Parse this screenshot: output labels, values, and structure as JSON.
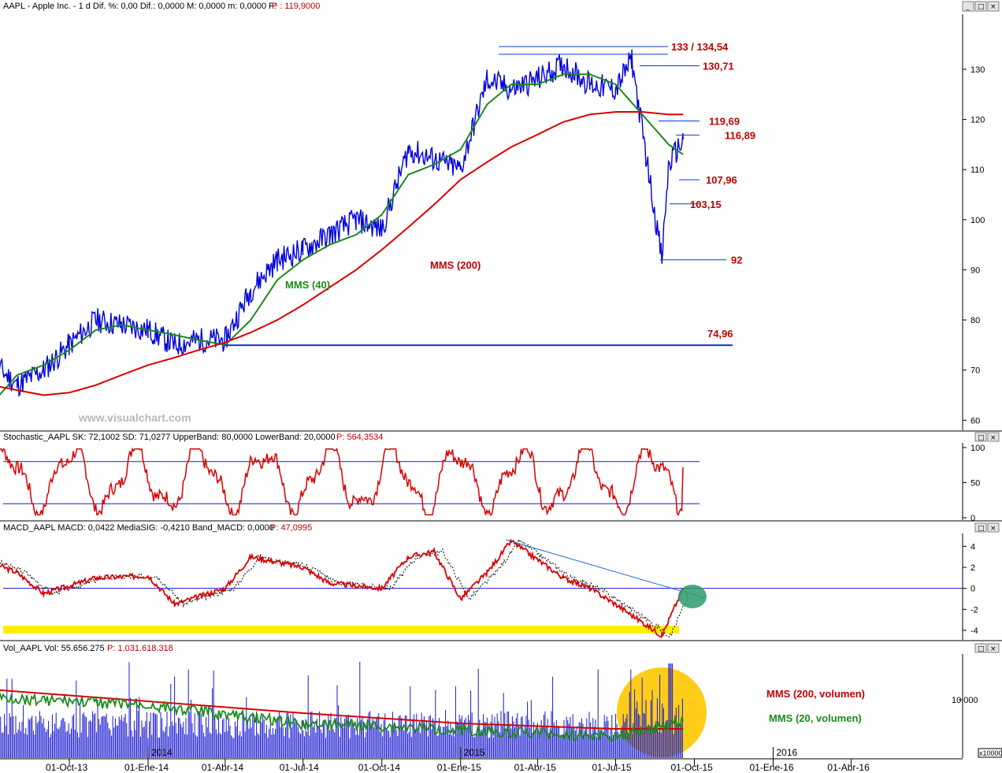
{
  "panels": {
    "price_header": "AAPL - Apple Inc. - 1 d Dif. %: 0,00 Dif.: 0,0000 M: 0,0000 m: 0,0000 F:",
    "price_header_last": "P : 119,9000",
    "stoch_header": "Stochastic_AAPL SK: 72,1002 SD: 71,0277 UpperBand: 80,0000 LowerBand: 20,0000",
    "stoch_header_last": "P: 564,3534",
    "macd_header": "MACD_AAPL MACD: 0,0422 MediaSIG: -0,4210 Band_MACD: 0,0000",
    "macd_header_last": "P: 47,0995",
    "vol_header": "Vol_AAPL Vol: 55.656.275",
    "vol_header_last": "P: 1.031.618.318"
  },
  "watermark": "www.visualchart.com",
  "window_buttons": [
    "_",
    "□",
    "×"
  ],
  "colors": {
    "price": "#0000e0",
    "mms40": "#1a8a1a",
    "mms200": "#d80000",
    "level": "#0a3ad0",
    "highlight_yellow": "#ffee00",
    "circle_teal": "#2e9a6a",
    "circle_yellow": "#ffc800"
  },
  "chart_data": [
    {
      "type": "line",
      "panel": "price",
      "ylim": [
        58,
        141
      ],
      "yticks": [
        60,
        70,
        80,
        90,
        100,
        110,
        120,
        130
      ],
      "x_axis": [
        "01-Oct-13",
        "01-Ene-14",
        "01-Abr-14",
        "01-Jul-14",
        "01-Oct-14",
        "01-Ene-15",
        "01-Abr-15",
        "01-Jul-15",
        "01-Oct-15",
        "01-Ene-16",
        "01-Abr-16"
      ],
      "year_markers": [
        "2014",
        "2015",
        "2016"
      ],
      "series": [
        {
          "name": "AAPL",
          "x": [
            "2013-07-01",
            "2013-08-01",
            "2013-09-01",
            "2013-10-01",
            "2013-11-01",
            "2013-12-01",
            "2014-01-01",
            "2014-02-01",
            "2014-03-01",
            "2014-04-01",
            "2014-05-01",
            "2014-06-01",
            "2014-07-01",
            "2014-08-01",
            "2014-09-01",
            "2014-10-01",
            "2014-11-01",
            "2014-12-01",
            "2015-01-01",
            "2015-02-01",
            "2015-03-01",
            "2015-04-01",
            "2015-05-01",
            "2015-06-01",
            "2015-07-01",
            "2015-07-20",
            "2015-08-01",
            "2015-08-24",
            "2015-09-01",
            "2015-09-18"
          ],
          "y": [
            72,
            67,
            70,
            75,
            80,
            79,
            78,
            75,
            76,
            76,
            86,
            92,
            94,
            97,
            100,
            98,
            114,
            112,
            110,
            128,
            126,
            128,
            131,
            127,
            126,
            132,
            118,
            92,
            111,
            116
          ]
        },
        {
          "name": "MMS (40)",
          "x": [
            "2013-07-01",
            "2013-08-01",
            "2013-09-01",
            "2013-10-01",
            "2013-11-01",
            "2013-12-01",
            "2014-01-01",
            "2014-02-01",
            "2014-03-01",
            "2014-04-01",
            "2014-05-01",
            "2014-06-01",
            "2014-07-01",
            "2014-08-01",
            "2014-09-01",
            "2014-10-01",
            "2014-11-01",
            "2014-12-01",
            "2015-01-01",
            "2015-02-01",
            "2015-03-01",
            "2015-04-01",
            "2015-05-01",
            "2015-06-01",
            "2015-07-01",
            "2015-08-01",
            "2015-09-01",
            "2015-09-18"
          ],
          "y": [
            63,
            69,
            71,
            74,
            78,
            79,
            78,
            77,
            76,
            75,
            80,
            88,
            92,
            95,
            97,
            101,
            109,
            111,
            114,
            123,
            127,
            127,
            129,
            129,
            127,
            121,
            115,
            113
          ]
        },
        {
          "name": "MMS (200)",
          "x": [
            "2013-07-01",
            "2013-08-01",
            "2013-09-01",
            "2013-10-01",
            "2013-11-01",
            "2013-12-01",
            "2014-01-01",
            "2014-02-01",
            "2014-03-01",
            "2014-04-01",
            "2014-05-01",
            "2014-06-01",
            "2014-07-01",
            "2014-08-01",
            "2014-09-01",
            "2014-10-01",
            "2014-11-01",
            "2014-12-01",
            "2015-01-01",
            "2015-02-01",
            "2015-03-01",
            "2015-04-01",
            "2015-05-01",
            "2015-06-01",
            "2015-07-01",
            "2015-08-01",
            "2015-09-01",
            "2015-09-18"
          ],
          "y": [
            67,
            66,
            65,
            65.5,
            67,
            69,
            71,
            72.5,
            74,
            75.5,
            77.5,
            80,
            83,
            86.5,
            90,
            94,
            98.5,
            103,
            108,
            111.5,
            114.5,
            117,
            119.5,
            121,
            121.5,
            121.5,
            121,
            121
          ]
        }
      ],
      "levels": [
        {
          "label": "133 / 134,54",
          "value": 134.54
        },
        {
          "label": "130,71",
          "value": 130.71
        },
        {
          "label": "119,69",
          "value": 119.69
        },
        {
          "label": "116,89",
          "value": 116.89
        },
        {
          "label": "107,96",
          "value": 107.96
        },
        {
          "label": "103,15",
          "value": 103.15
        },
        {
          "label": "92",
          "value": 92
        },
        {
          "label": "74,96",
          "value": 74.96
        }
      ],
      "labels": {
        "mms40": "MMS (40)",
        "mms200": "MMS (200)"
      }
    },
    {
      "type": "line",
      "panel": "stochastic",
      "ylim": [
        0,
        100
      ],
      "yticks": [
        0,
        50,
        100
      ],
      "bands": [
        80,
        20
      ],
      "series": [
        {
          "name": "SK",
          "x": [
            "2013-07-01",
            "2013-09-01",
            "2013-11-01",
            "2014-01-01",
            "2014-03-01",
            "2014-05-01",
            "2014-07-01",
            "2014-09-01",
            "2014-11-01",
            "2015-01-01",
            "2015-03-01",
            "2015-05-01",
            "2015-07-01",
            "2015-08-24",
            "2015-09-18"
          ],
          "y": [
            80,
            15,
            85,
            10,
            90,
            25,
            95,
            20,
            90,
            15,
            85,
            15,
            95,
            5,
            72
          ]
        }
      ]
    },
    {
      "type": "line",
      "panel": "macd",
      "ylim": [
        -4.6,
        5
      ],
      "yticks": [
        -4,
        -2,
        0,
        2,
        4
      ],
      "series": [
        {
          "name": "MACD",
          "x": [
            "2013-07-01",
            "2013-08-01",
            "2013-09-01",
            "2013-11-01",
            "2014-01-01",
            "2014-02-01",
            "2014-04-01",
            "2014-05-01",
            "2014-07-01",
            "2014-08-01",
            "2014-10-01",
            "2014-11-01",
            "2014-12-01",
            "2015-01-01",
            "2015-02-01",
            "2015-03-01",
            "2015-05-01",
            "2015-06-01",
            "2015-07-01",
            "2015-08-24",
            "2015-09-18"
          ],
          "y": [
            2.5,
            1.5,
            -0.5,
            1,
            1.2,
            -1.5,
            0,
            3,
            2,
            0.5,
            0,
            3,
            3.5,
            -1,
            1.5,
            4.5,
            1,
            0,
            -1.5,
            -4.5,
            0.04
          ]
        }
      ]
    },
    {
      "type": "bar",
      "panel": "volume",
      "ytick_label": "10.000",
      "unit_label": "x10000",
      "series": [
        {
          "name": "MMS (200, volumen)"
        },
        {
          "name": "MMS (20, volumen)"
        }
      ]
    }
  ]
}
